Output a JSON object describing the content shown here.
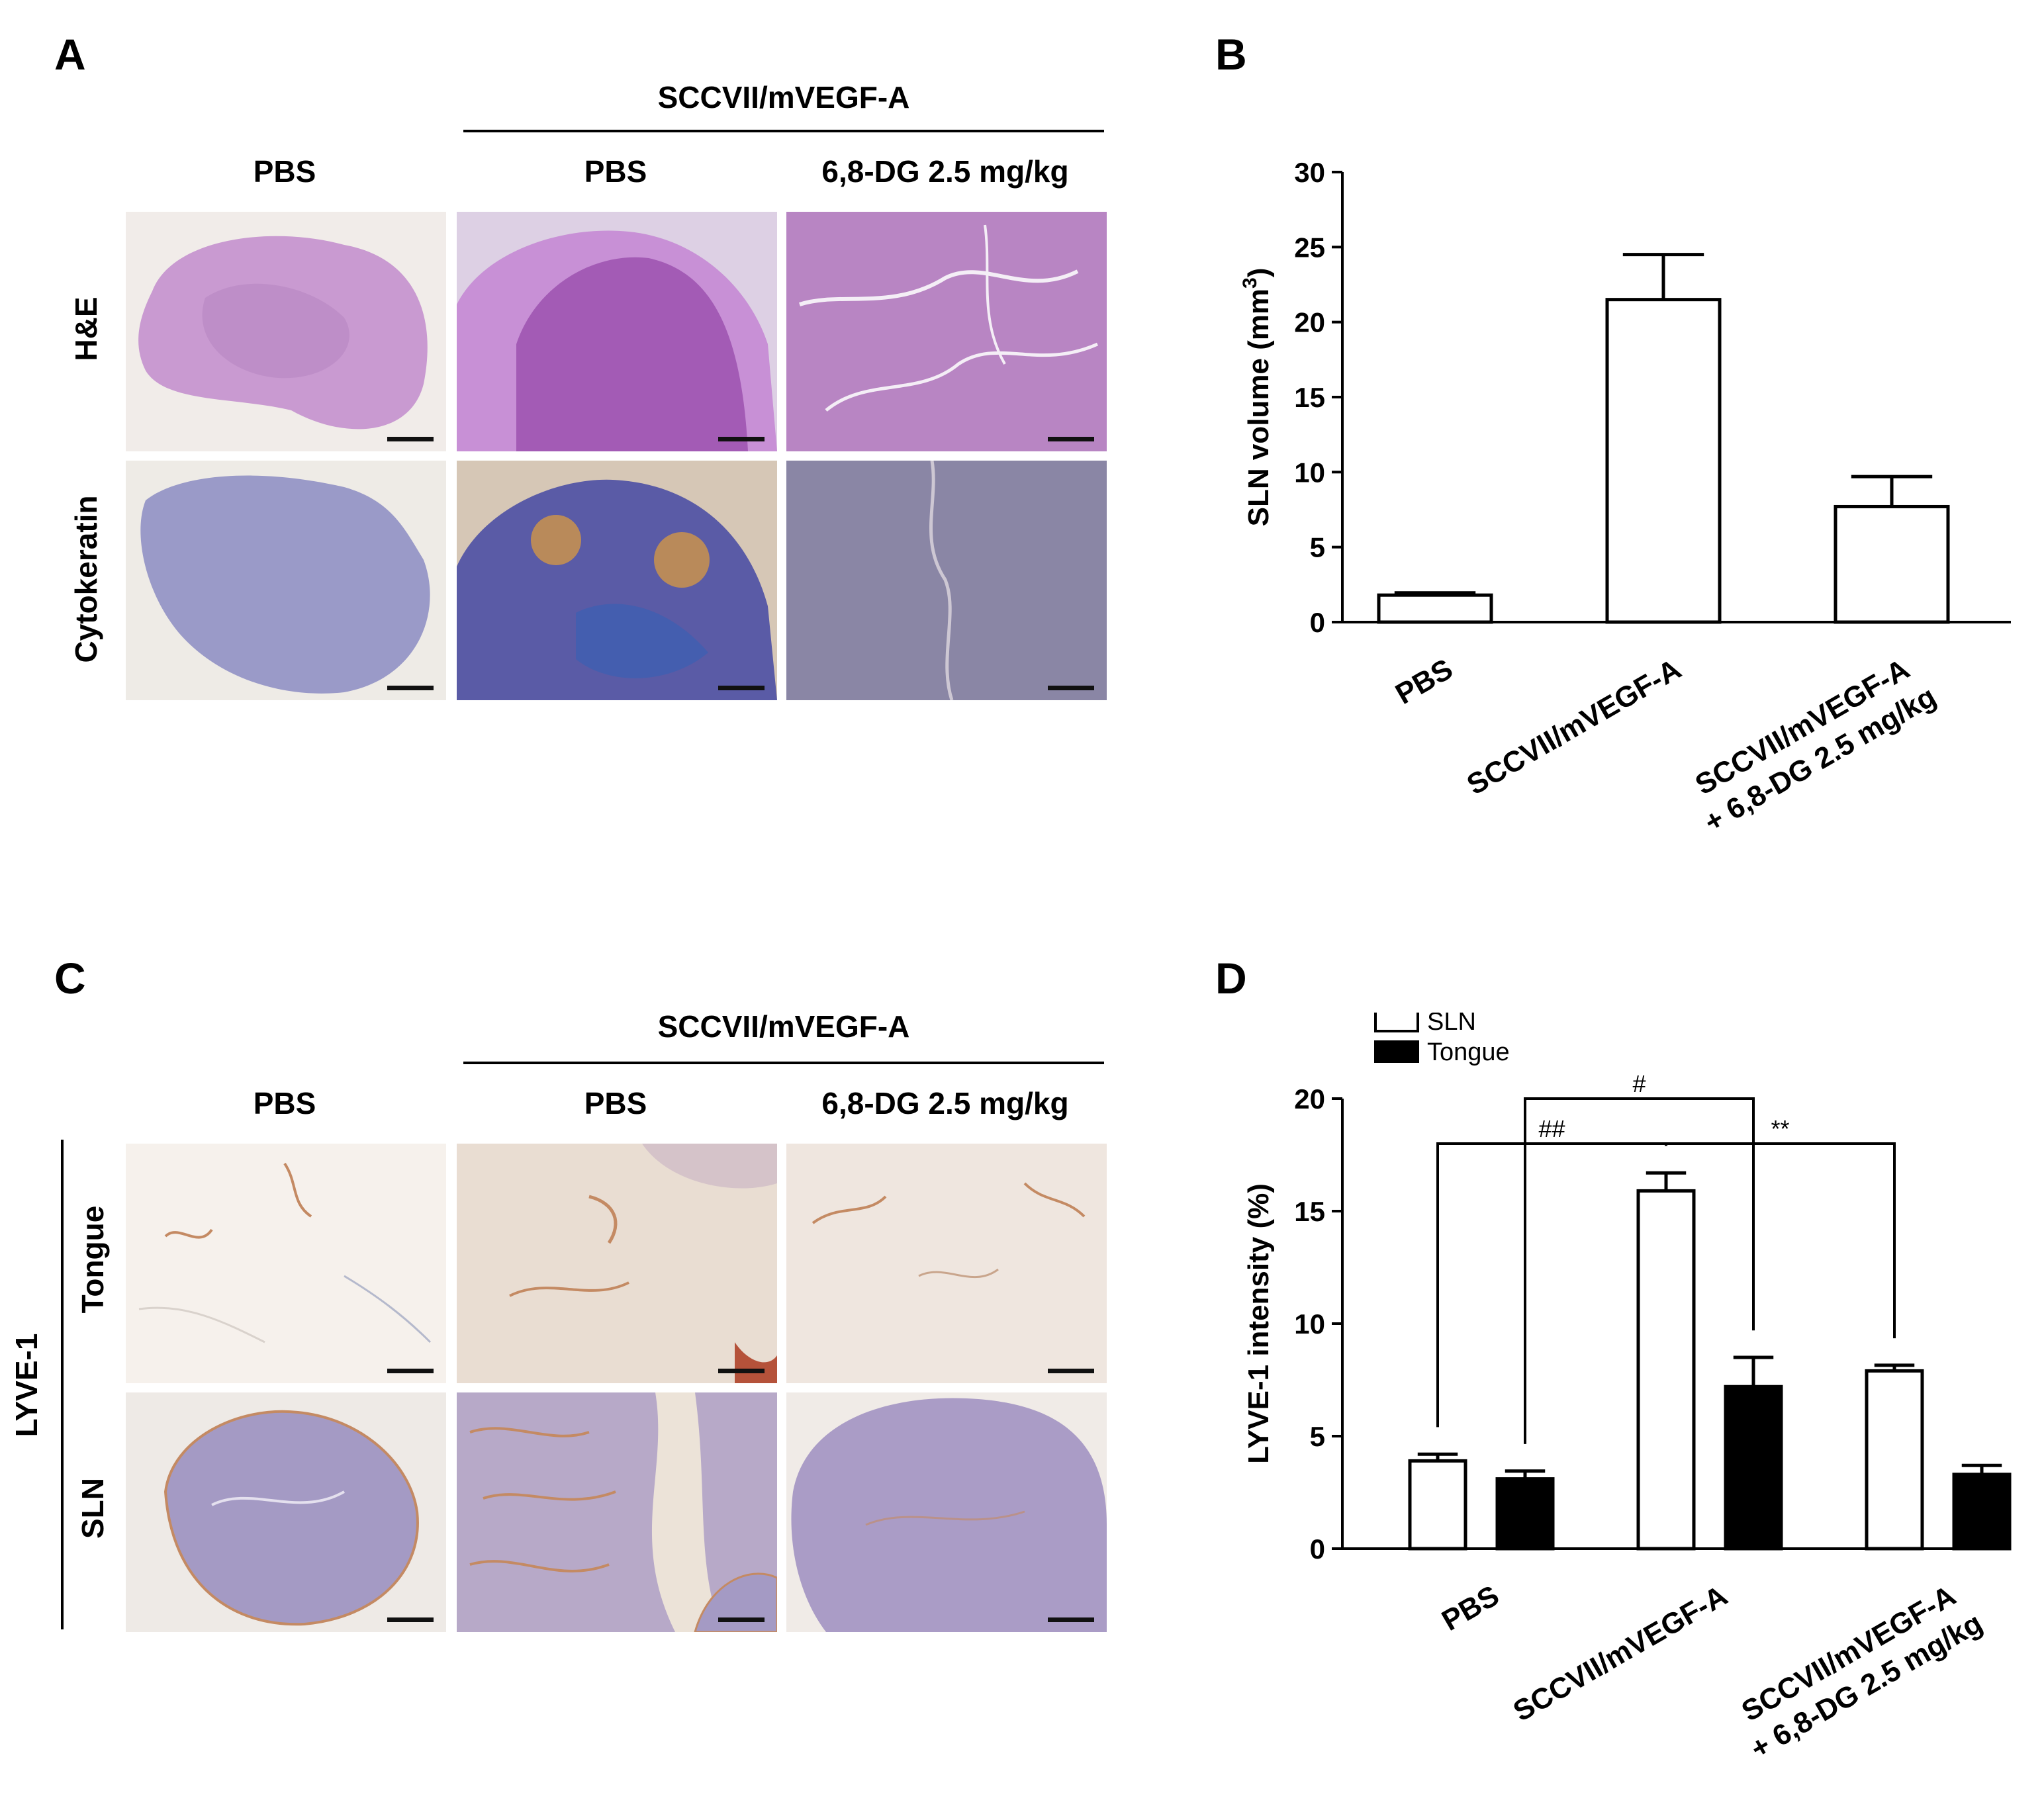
{
  "panels": {
    "A": {
      "label": "A",
      "group_label": "SCCVII/mVEGF-A",
      "columns": [
        "PBS",
        "PBS",
        "6,8-DG 2.5 mg/kg"
      ],
      "rows": [
        "H&E",
        "Cytokeratin"
      ]
    },
    "B": {
      "label": "B"
    },
    "C": {
      "label": "C",
      "group_label": "SCCVII/mVEGF-A",
      "columns": [
        "PBS",
        "PBS",
        "6,8-DG 2.5 mg/kg"
      ],
      "side_label": "LYVE-1",
      "rows": [
        "Tongue",
        "SLN"
      ]
    },
    "D": {
      "label": "D"
    }
  },
  "colors": {
    "he": "#c79ad0",
    "he_dark": "#a968b8",
    "cyto_blue": "#8a8fbf",
    "cyto_dark": "#4a4c9a",
    "cyto_brown": "#b98a5a",
    "lyve_pale": "#f3ece6",
    "lyve_brown": "#c48a63",
    "lyve_node": "#a49ac4",
    "bar_open": "#ffffff",
    "bar_filled": "#000000"
  },
  "chart_data": [
    {
      "type": "bar",
      "categories": [
        "PBS",
        "SCCVII/mVEGF-A",
        "SCCVII/mVEGF-A\n+ 6,8-DG 2.5 mg/kg"
      ],
      "values": [
        1.8,
        21.5,
        7.7
      ],
      "errors": [
        0.15,
        3.0,
        2.0
      ],
      "ylabel": "SLN volume (mm",
      "ylabel_sup": "3",
      "ylabel_close": ")",
      "ylim": [
        0,
        30
      ],
      "yticks": [
        0,
        5,
        10,
        15,
        20,
        25,
        30
      ],
      "grid": false
    },
    {
      "type": "bar",
      "categories": [
        "PBS",
        "SCCVII/mVEGF-A",
        "SCCVII/mVEGF-A\n+ 6,8-DG 2.5 mg/kg"
      ],
      "series": [
        {
          "name": "SLN",
          "values": [
            3.9,
            15.9,
            7.9
          ],
          "errors": [
            0.3,
            0.8,
            0.25
          ],
          "fill": "open"
        },
        {
          "name": "Tongue",
          "values": [
            3.1,
            7.2,
            3.3
          ],
          "errors": [
            0.35,
            1.3,
            0.4
          ],
          "fill": "filled"
        }
      ],
      "ylabel": "LYVE-1 intensity (%)",
      "ylim": [
        0,
        20
      ],
      "yticks": [
        0,
        5,
        10,
        15,
        20
      ],
      "legend": "top-left",
      "grid": false,
      "annotations": [
        {
          "text": "#",
          "from": [
            "SCCVII/mVEGF-A",
            "Tongue"
          ],
          "to": [
            "PBS",
            "Tongue"
          ],
          "level": 20
        },
        {
          "text": "##",
          "from": [
            "PBS",
            "SLN"
          ],
          "to": [
            "SCCVII/mVEGF-A",
            "SLN"
          ],
          "level": 18
        },
        {
          "text": "**",
          "from": [
            "SCCVII/mVEGF-A",
            "SLN"
          ],
          "to": [
            "SCCVII/mVEGF-A\n+ 6,8-DG 2.5 mg/kg",
            "SLN"
          ],
          "level": 18
        }
      ]
    }
  ]
}
